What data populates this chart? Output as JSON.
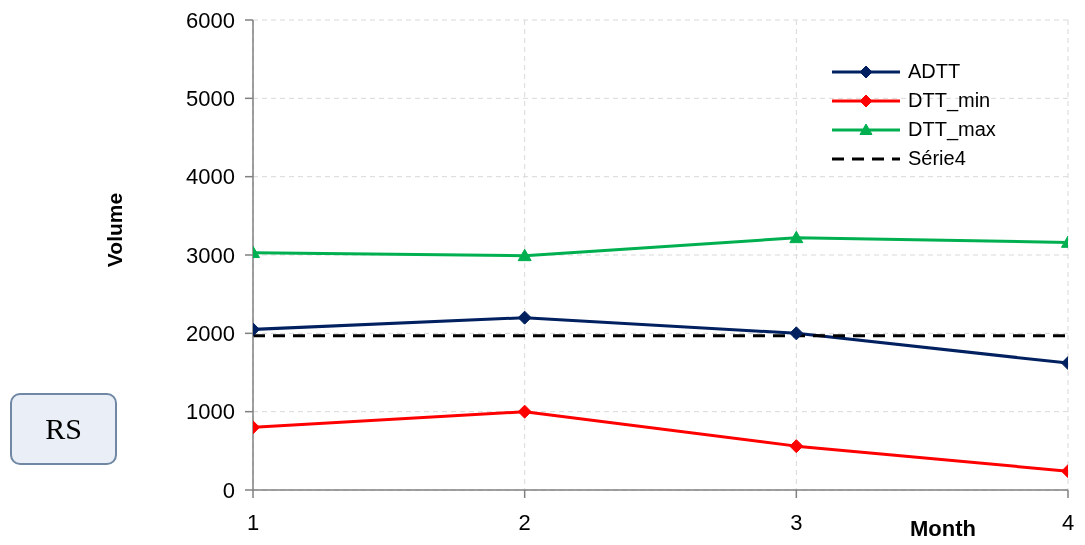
{
  "chart_data": {
    "type": "line",
    "xlabel": "Month",
    "ylabel": "Volume",
    "annotations": [
      "RS"
    ],
    "x": [
      1,
      2,
      3,
      4
    ],
    "xlim": [
      1,
      4
    ],
    "xticks": [
      1,
      2,
      3,
      4
    ],
    "ylim": [
      0,
      6000
    ],
    "yticks": [
      0,
      1000,
      2000,
      3000,
      4000,
      5000,
      6000
    ],
    "grid": true,
    "legend": "top right",
    "series": [
      {
        "name": "ADTT",
        "color": "#002060",
        "values": [
          2050,
          2200,
          2000,
          1620
        ],
        "marker": "diamond"
      },
      {
        "name": "DTT_min",
        "color": "#ff0000",
        "values": [
          800,
          1000,
          560,
          240
        ],
        "marker": "diamond"
      },
      {
        "name": "DTT_max",
        "color": "#00b050",
        "values": [
          3030,
          2990,
          3220,
          3160
        ],
        "marker": "triangle"
      },
      {
        "name": "Série4",
        "color": "#000000",
        "values": [
          1970,
          1970,
          1970,
          1970
        ],
        "marker": "none",
        "line_style": "dashed"
      }
    ]
  }
}
